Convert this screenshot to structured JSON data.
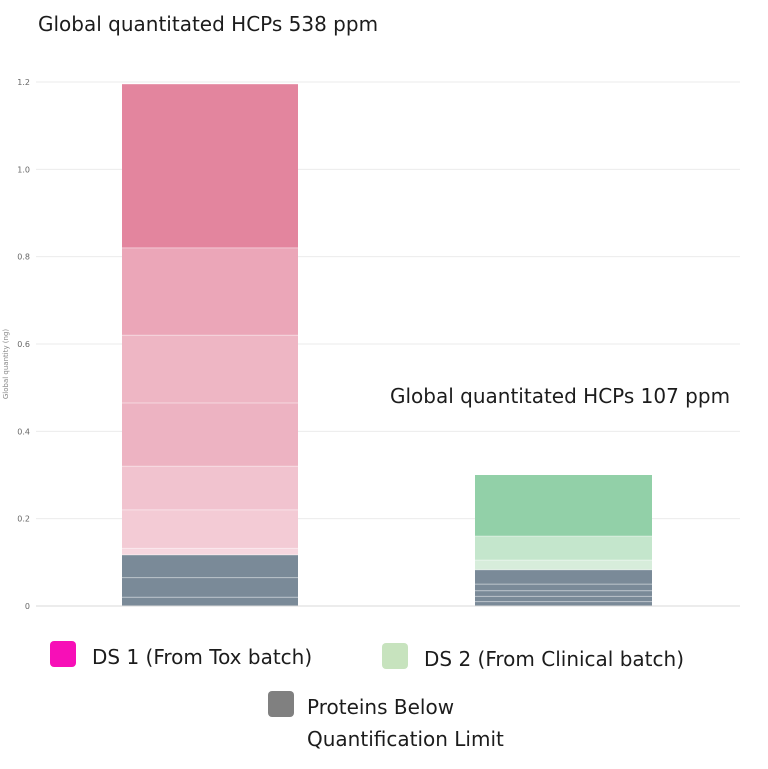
{
  "chart_data": {
    "type": "bar",
    "stacked": true,
    "ylabel": "Global quantity (ng)",
    "ylim": [
      0,
      1.2
    ],
    "yticks": [
      0,
      0.2,
      0.4,
      0.6,
      0.8,
      1.0,
      1.2
    ],
    "ytick_labels": [
      "0",
      "0.2",
      "0.4",
      "0.6",
      "0.8",
      "1.0",
      "1.2"
    ],
    "grid": true,
    "bars": [
      {
        "annotation": "Global quantitated HCPs 538 ppm",
        "segments": [
          {
            "group": "below",
            "value": 0.02,
            "color": "#7a8a98"
          },
          {
            "group": "below",
            "value": 0.045,
            "color": "#7a8a98"
          },
          {
            "group": "below",
            "value": 0.052,
            "color": "#7a8a98"
          },
          {
            "group": "ds1",
            "value": 0.015,
            "color": "#f6d7df"
          },
          {
            "group": "ds1",
            "value": 0.088,
            "color": "#f3cbd5"
          },
          {
            "group": "ds1",
            "value": 0.1,
            "color": "#f1c3cf"
          },
          {
            "group": "ds1",
            "value": 0.145,
            "color": "#edb3c2"
          },
          {
            "group": "ds1",
            "value": 0.155,
            "color": "#eeb6c4"
          },
          {
            "group": "ds1",
            "value": 0.2,
            "color": "#eba6b8"
          },
          {
            "group": "ds1",
            "value": 0.375,
            "color": "#e3859e"
          }
        ]
      },
      {
        "annotation": "Global quantitated HCPs 107 ppm",
        "segments": [
          {
            "group": "below",
            "value": 0.01,
            "color": "#7a8a98"
          },
          {
            "group": "below",
            "value": 0.012,
            "color": "#7a8a98"
          },
          {
            "group": "below",
            "value": 0.013,
            "color": "#7a8a98"
          },
          {
            "group": "below",
            "value": 0.015,
            "color": "#7a8a98"
          },
          {
            "group": "below",
            "value": 0.033,
            "color": "#7a8a98"
          },
          {
            "group": "ds2",
            "value": 0.022,
            "color": "#d7eddb"
          },
          {
            "group": "ds2",
            "value": 0.055,
            "color": "#c4e6cc"
          },
          {
            "group": "ds2",
            "value": 0.14,
            "color": "#92d0a8"
          }
        ]
      }
    ]
  },
  "annotations": {
    "bar1": "Global quantitated HCPs 538 ppm",
    "bar2": "Global quantitated HCPs 107 ppm"
  },
  "legend": [
    {
      "label": "DS 1 (From Tox batch)",
      "color": "#f70fb7"
    },
    {
      "label": "DS 2 (From Clinical batch)",
      "color": "#c7e3be"
    },
    {
      "label": "Proteins Below Quantification Limit",
      "color": "#808080"
    }
  ]
}
